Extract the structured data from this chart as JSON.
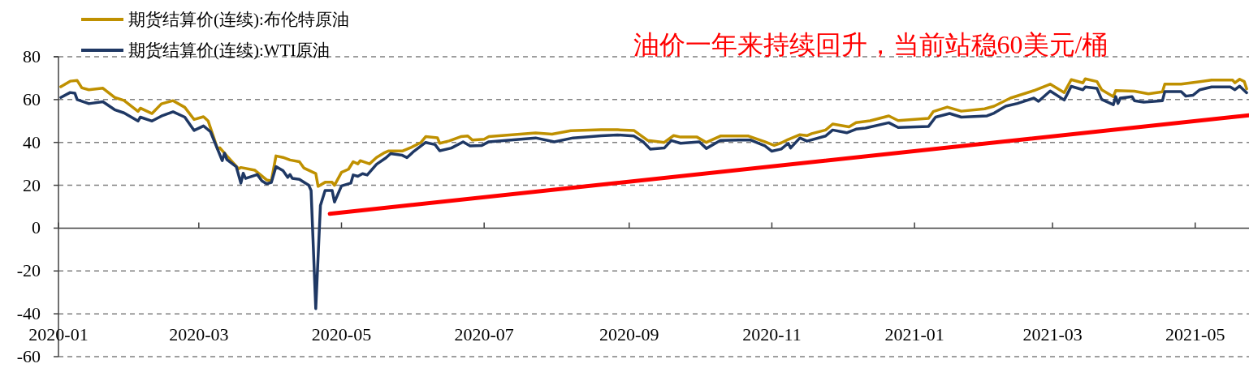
{
  "chart_data": {
    "type": "line",
    "legend": "top left",
    "grid": "y",
    "line_style": "solid",
    "marker": "none",
    "xlim": [
      "2020-01-01",
      "2021-05-24"
    ],
    "xticks": [
      "2020-01",
      "2020-03",
      "2020-05",
      "2020-07",
      "2020-09",
      "2020-11",
      "2021-01",
      "2021-03",
      "2021-05"
    ],
    "ylim": [
      -60,
      80
    ],
    "yticks": [
      -60,
      -40,
      -20,
      0,
      20,
      40,
      60,
      80
    ],
    "annotations": [
      "油价一年来持续回升，当前站稳60美元/桶"
    ],
    "series": [
      {
        "name": "期货结算价(连续):布伦特原油",
        "color": "#bf9000",
        "x": [
          "2020-01-02",
          "2020-01-06",
          "2020-01-09",
          "2020-01-11",
          "2020-01-14",
          "2020-01-20",
          "2020-01-25",
          "2020-01-29",
          "2020-02-04",
          "2020-02-05",
          "2020-02-10",
          "2020-02-14",
          "2020-02-19",
          "2020-02-24",
          "2020-02-28",
          "2020-03-03",
          "2020-03-05",
          "2020-03-09",
          "2020-03-10",
          "2020-03-13",
          "2020-03-18",
          "2020-03-19",
          "2020-03-25",
          "2020-03-30",
          "2020-04-01",
          "2020-04-03",
          "2020-04-06",
          "2020-04-09",
          "2020-04-13",
          "2020-04-15",
          "2020-04-20",
          "2020-04-21",
          "2020-04-24",
          "2020-04-27",
          "2020-04-28",
          "2020-05-01",
          "2020-05-04",
          "2020-05-06",
          "2020-05-08",
          "2020-05-09",
          "2020-05-13",
          "2020-05-16",
          "2020-05-19",
          "2020-05-21",
          "2020-05-27",
          "2020-05-31",
          "2020-06-04",
          "2020-06-06",
          "2020-06-11",
          "2020-06-12",
          "2020-06-16",
          "2020-06-21",
          "2020-06-24",
          "2020-06-26",
          "2020-07-01",
          "2020-07-03",
          "2020-07-23",
          "2020-07-30",
          "2020-08-07",
          "2020-08-20",
          "2020-08-27",
          "2020-09-03",
          "2020-09-09",
          "2020-09-16",
          "2020-09-20",
          "2020-09-23",
          "2020-09-30",
          "2020-10-04",
          "2020-10-10",
          "2020-10-17",
          "2020-10-22",
          "2020-10-29",
          "2020-11-02",
          "2020-11-05",
          "2020-11-08",
          "2020-11-13",
          "2020-11-16",
          "2020-11-18",
          "2020-11-24",
          "2020-11-27",
          "2020-12-04",
          "2020-12-07",
          "2020-12-13",
          "2020-12-21",
          "2020-12-25",
          "2021-01-07",
          "2021-01-09",
          "2021-01-15",
          "2021-01-21",
          "2021-01-31",
          "2021-02-04",
          "2021-02-11",
          "2021-02-21",
          "2021-02-28",
          "2021-03-06",
          "2021-03-09",
          "2021-03-14",
          "2021-03-15",
          "2021-03-20",
          "2021-03-22",
          "2021-03-27",
          "2021-03-28",
          "2021-04-05",
          "2021-04-11",
          "2021-04-17",
          "2021-04-18",
          "2021-04-25",
          "2021-05-03",
          "2021-05-08",
          "2021-05-17",
          "2021-05-18",
          "2021-05-20",
          "2021-05-22",
          "2021-05-23"
        ],
        "values": [
          66,
          68.6,
          68.9,
          65.5,
          64.6,
          65.3,
          61,
          59.6,
          54.5,
          56,
          53.5,
          58,
          59.5,
          56.4,
          50.7,
          52,
          50,
          37,
          37.5,
          33.7,
          27.7,
          28.3,
          27,
          22.5,
          22,
          33.7,
          33,
          31.8,
          31,
          28,
          25.5,
          19.5,
          21.4,
          21.4,
          20,
          26,
          27.5,
          31,
          30,
          31.5,
          30,
          33,
          35,
          36,
          36,
          37.8,
          40,
          42.7,
          42.2,
          39.6,
          40.7,
          42.7,
          43,
          41.1,
          41.5,
          42.7,
          44.4,
          43.9,
          45.5,
          45.9,
          45.9,
          45.6,
          40.9,
          40,
          43.2,
          42.5,
          42.5,
          40,
          43,
          43,
          43,
          40.3,
          38.6,
          39.8,
          41.4,
          43.6,
          43.2,
          44.1,
          45.8,
          48.6,
          47.3,
          49.3,
          50.1,
          52.4,
          50.2,
          51.2,
          54.4,
          56.5,
          54.6,
          55.7,
          56.9,
          60.7,
          64.2,
          67.2,
          63.3,
          69.3,
          67.8,
          69.7,
          68.4,
          64.6,
          61.4,
          64.2,
          63.9,
          62.7,
          63.6,
          67.2,
          67.2,
          68.4,
          69.1,
          69.1,
          67.8,
          69.5,
          68.4,
          65
        ]
      },
      {
        "name": "期货结算价(连续):WTI原油",
        "color": "#1f3864",
        "x": [
          "2020-01-02",
          "2020-01-06",
          "2020-01-08",
          "2020-01-09",
          "2020-01-14",
          "2020-01-20",
          "2020-01-25",
          "2020-01-29",
          "2020-02-04",
          "2020-02-05",
          "2020-02-10",
          "2020-02-14",
          "2020-02-19",
          "2020-02-24",
          "2020-02-28",
          "2020-03-03",
          "2020-03-06",
          "2020-03-11",
          "2020-03-12",
          "2020-03-13",
          "2020-03-17",
          "2020-03-19",
          "2020-03-20",
          "2020-03-21",
          "2020-03-26",
          "2020-03-28",
          "2020-03-30",
          "2020-04-01",
          "2020-04-03",
          "2020-04-06",
          "2020-04-08",
          "2020-04-09",
          "2020-04-10",
          "2020-04-13",
          "2020-04-17",
          "2020-04-18",
          "2020-04-20",
          "2020-04-22",
          "2020-04-24",
          "2020-04-27",
          "2020-04-28",
          "2020-05-01",
          "2020-05-05",
          "2020-05-06",
          "2020-05-08",
          "2020-05-10",
          "2020-05-12",
          "2020-05-16",
          "2020-05-20",
          "2020-05-22",
          "2020-05-27",
          "2020-05-29",
          "2020-06-01",
          "2020-06-06",
          "2020-06-10",
          "2020-06-12",
          "2020-06-17",
          "2020-06-22",
          "2020-06-25",
          "2020-06-30",
          "2020-07-03",
          "2020-07-23",
          "2020-07-31",
          "2020-08-08",
          "2020-08-20",
          "2020-08-27",
          "2020-09-03",
          "2020-09-07",
          "2020-09-10",
          "2020-09-16",
          "2020-09-19",
          "2020-09-23",
          "2020-10-01",
          "2020-10-04",
          "2020-10-10",
          "2020-10-18",
          "2020-10-23",
          "2020-10-29",
          "2020-11-01",
          "2020-11-05",
          "2020-11-08",
          "2020-11-09",
          "2020-11-13",
          "2020-11-16",
          "2020-11-24",
          "2020-11-27",
          "2020-12-03",
          "2020-12-07",
          "2020-12-11",
          "2020-12-21",
          "2020-12-25",
          "2021-01-07",
          "2021-01-10",
          "2021-01-16",
          "2021-01-21",
          "2021-02-01",
          "2021-02-04",
          "2021-02-09",
          "2021-02-14",
          "2021-02-21",
          "2021-02-23",
          "2021-02-28",
          "2021-03-06",
          "2021-03-09",
          "2021-03-14",
          "2021-03-15",
          "2021-03-20",
          "2021-03-22",
          "2021-03-27",
          "2021-03-28",
          "2021-03-29",
          "2021-03-30",
          "2021-04-04",
          "2021-04-05",
          "2021-04-09",
          "2021-04-17",
          "2021-04-18",
          "2021-04-25",
          "2021-04-27",
          "2021-04-30",
          "2021-05-03",
          "2021-05-08",
          "2021-05-16",
          "2021-05-18",
          "2021-05-20",
          "2021-05-23"
        ],
        "values": [
          61,
          63.3,
          63,
          60,
          58.1,
          59,
          55.3,
          53.8,
          50,
          51.8,
          50,
          52.3,
          54.3,
          51.8,
          45.6,
          47.7,
          45,
          31.5,
          35,
          32,
          28.7,
          21,
          25.6,
          23.2,
          25,
          22,
          20.7,
          21.3,
          28.7,
          26.8,
          23.7,
          25,
          23.2,
          22.8,
          20,
          17.6,
          -37.6,
          10.6,
          17.6,
          17.6,
          12.2,
          19.7,
          21,
          24.8,
          24.2,
          25.4,
          24.8,
          29.8,
          32.8,
          34.8,
          34,
          32.9,
          35.9,
          40,
          39,
          36.1,
          37.4,
          40.3,
          38.4,
          38.6,
          40.3,
          42.1,
          40.3,
          42.1,
          43.1,
          43.5,
          43,
          40.3,
          36.9,
          37.4,
          40.9,
          39.6,
          40.3,
          37.2,
          40.9,
          41.1,
          41.1,
          38.4,
          35.9,
          36.9,
          39.6,
          37.4,
          42.1,
          40.6,
          43,
          45.8,
          44.5,
          46.2,
          46.7,
          49.2,
          47,
          47.5,
          51.8,
          53.5,
          51.8,
          52.4,
          53.7,
          56.9,
          58.2,
          60.7,
          59.2,
          64,
          59.8,
          66.2,
          64.6,
          65.9,
          65.2,
          60.1,
          57.6,
          61.4,
          58.2,
          60.7,
          61.4,
          59.5,
          58.8,
          59.5,
          63.7,
          63.7,
          61.6,
          62,
          64.6,
          65.9,
          65.9,
          64.6,
          66.3,
          63.2
        ]
      },
      {
        "type": "line",
        "color": "#ff0000",
        "x": [
          "2020-04-26",
          "2021-05-24"
        ],
        "values": [
          6.7,
          52.7
        ]
      }
    ]
  }
}
